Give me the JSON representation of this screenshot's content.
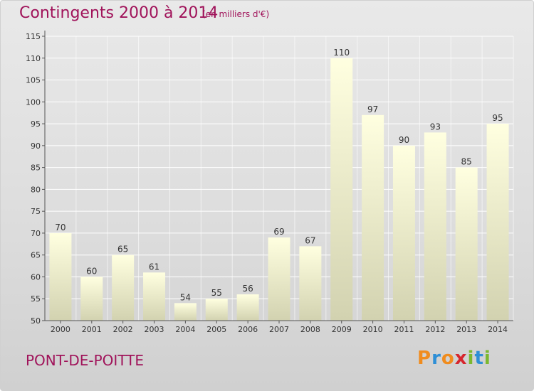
{
  "title": "Contingents 2000 à 2014",
  "subtitle": "(en milliers d'€)",
  "commune": "PONT-DE-POITTE",
  "logo": {
    "letters": [
      "P",
      "r",
      "o",
      "x",
      "i",
      "t",
      "i"
    ],
    "colors": [
      "#f08c1e",
      "#2e8fd6",
      "#f08c1e",
      "#d6262d",
      "#7cb82f",
      "#2e8fd6",
      "#7cb82f"
    ]
  },
  "colors": {
    "title": "#a0135a",
    "bar_top": "#ffffe0",
    "bar_bottom": "#d2d2b0",
    "axis": "#555555",
    "grid": "#ffffff"
  },
  "chart_data": {
    "type": "bar",
    "categories": [
      "2000",
      "2001",
      "2002",
      "2003",
      "2004",
      "2005",
      "2006",
      "2007",
      "2008",
      "2009",
      "2010",
      "2011",
      "2012",
      "2013",
      "2014"
    ],
    "values": [
      70,
      60,
      65,
      61,
      54,
      55,
      56,
      69,
      67,
      110,
      97,
      90,
      93,
      85,
      95
    ],
    "ylim": [
      50,
      115
    ],
    "yticks": [
      50,
      55,
      60,
      65,
      70,
      75,
      80,
      85,
      90,
      95,
      100,
      105,
      110,
      115
    ],
    "grid": true,
    "data_labels": true
  }
}
